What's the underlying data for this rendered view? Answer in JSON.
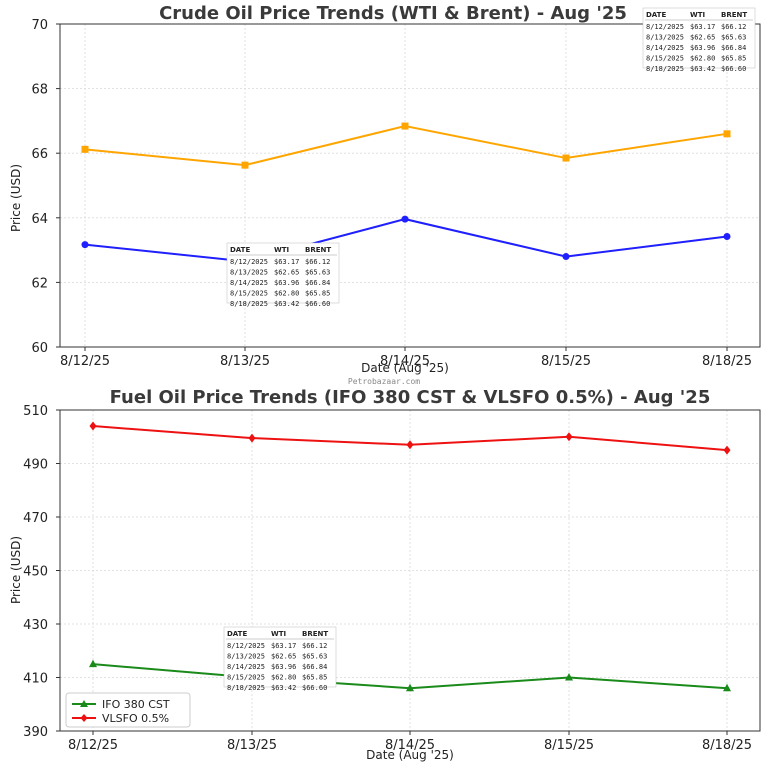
{
  "chart_data": [
    {
      "type": "line",
      "title": "Crude Oil Price Trends (WTI & Brent) - Aug '25",
      "xlabel": "Date (Aug '25)",
      "ylabel": "Price (USD)",
      "categories": [
        "8/12/25",
        "8/13/25",
        "8/14/25",
        "8/15/25",
        "8/18/25"
      ],
      "ylim": [
        60,
        70
      ],
      "yticks": [
        "60",
        "62",
        "64",
        "66",
        "68",
        "70"
      ],
      "grid": true,
      "series": [
        {
          "name": "WTI",
          "color": "#1f1fff",
          "marker": "circle",
          "values": [
            63.17,
            62.65,
            63.96,
            62.8,
            63.42
          ]
        },
        {
          "name": "Brent",
          "color": "#ffa500",
          "marker": "square",
          "values": [
            66.12,
            65.63,
            66.84,
            65.85,
            66.6
          ]
        }
      ]
    },
    {
      "type": "line",
      "title": "Fuel Oil Price Trends (IFO 380 CST & VLSFO 0.5%) - Aug '25",
      "xlabel": "Date (Aug '25)",
      "ylabel": "Price (USD)",
      "categories": [
        "8/12/25",
        "8/13/25",
        "8/14/25",
        "8/15/25",
        "8/18/25"
      ],
      "ylim": [
        390,
        510
      ],
      "yticks": [
        "390",
        "410",
        "430",
        "450",
        "470",
        "490",
        "510"
      ],
      "grid": true,
      "legend_position": "bottom-left",
      "series": [
        {
          "name": "IFO 380 CST",
          "color": "#1a8a1a",
          "marker": "triangle",
          "values": [
            415,
            410,
            406,
            410,
            406
          ]
        },
        {
          "name": "VLSFO 0.5%",
          "color": "#ee1111",
          "marker": "diamond",
          "values": [
            504,
            499.5,
            497,
            500,
            495
          ]
        }
      ]
    }
  ],
  "data_table": {
    "headers": [
      "DATE",
      "WTI",
      "BRENT"
    ],
    "rows": [
      [
        "8/12/2025",
        "$63.17",
        "$66.12"
      ],
      [
        "8/13/2025",
        "$62.65",
        "$65.63"
      ],
      [
        "8/14/2025",
        "$63.96",
        "$66.84"
      ],
      [
        "8/15/2025",
        "$62.80",
        "$65.85"
      ],
      [
        "8/18/2025",
        "$63.42",
        "$66.60"
      ]
    ]
  },
  "watermark": "Petrobazaar.com"
}
